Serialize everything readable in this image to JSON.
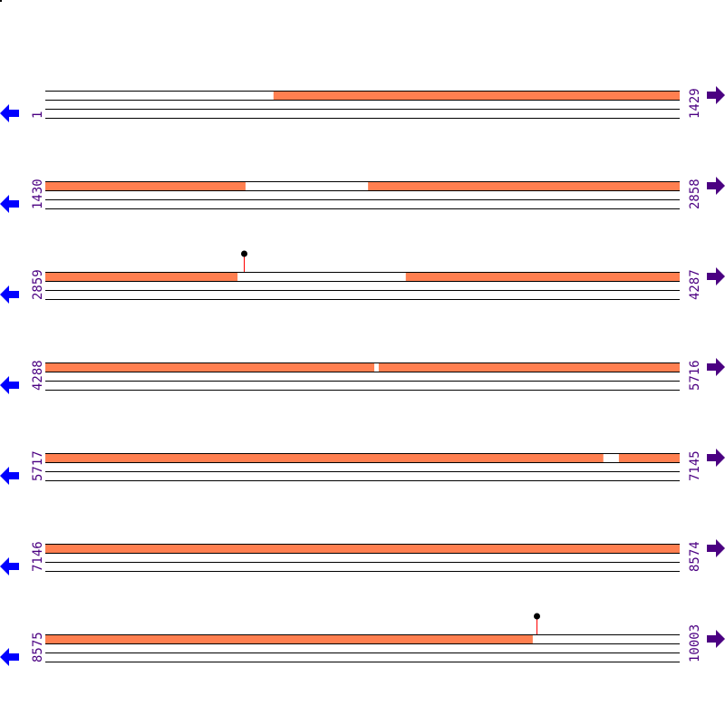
{
  "colors": {
    "feature": "#ff7f50",
    "line": "#000000",
    "label": "#4b0082",
    "left_arrow": "#0000ff",
    "right_arrow": "#4b0082",
    "marker_stem": "#ff0000",
    "marker_head": "#000000"
  },
  "icons": {
    "left": "arrow-left-icon",
    "right": "arrow-right-icon"
  },
  "rows": [
    {
      "start": "1",
      "end": "1429",
      "s": 1,
      "e": 1429,
      "features": [
        [
          515,
          1429
        ]
      ],
      "markers": []
    },
    {
      "start": "1430",
      "end": "2858",
      "s": 1430,
      "e": 2858,
      "features": [
        [
          1430,
          1881
        ],
        [
          2157,
          2858
        ]
      ],
      "markers": []
    },
    {
      "start": "2859",
      "end": "4287",
      "s": 2859,
      "e": 4287,
      "features": [
        [
          2859,
          3292
        ],
        [
          3671,
          4287
        ]
      ],
      "markers": [
        3306
      ]
    },
    {
      "start": "4288",
      "end": "5716",
      "s": 4288,
      "e": 5716,
      "features": [
        [
          4288,
          5029
        ],
        [
          5039,
          5716
        ]
      ],
      "markers": []
    },
    {
      "start": "5717",
      "end": "7145",
      "s": 5717,
      "e": 7145,
      "features": [
        [
          5717,
          6974
        ],
        [
          7009,
          7145
        ]
      ],
      "markers": []
    },
    {
      "start": "7146",
      "end": "8574",
      "s": 7146,
      "e": 8574,
      "features": [
        [
          7146,
          8574
        ]
      ],
      "markers": []
    },
    {
      "start": "8575",
      "end": "10003",
      "s": 8575,
      "e": 10003,
      "features": [
        [
          8575,
          9673
        ]
      ],
      "markers": [
        9681
      ]
    }
  ]
}
